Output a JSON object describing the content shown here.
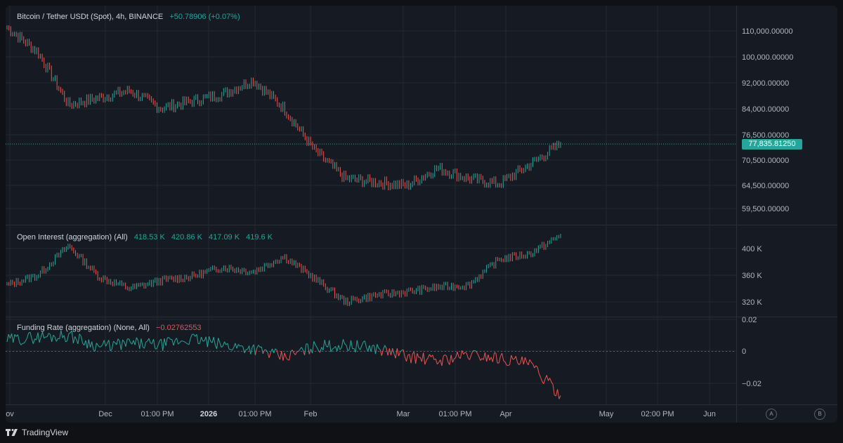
{
  "price_pane": {
    "title": "Bitcoin / Tether USDt (Spot), 4h, BINANCE",
    "change": "+50.78906 (+0.07%)",
    "last_price": "77,835.81250",
    "y_ticks": [
      "110,000.00000",
      "100,000.00000",
      "92,000.00000",
      "84,000.00000",
      "76,500.00000",
      "70,500.00000",
      "64,500.00000",
      "59,500.00000"
    ]
  },
  "oi_pane": {
    "title": "Open Interest (aggregation) (All)",
    "o": "418.53 K",
    "h": "420.86 K",
    "l": "417.09 K",
    "c": "419.6 K",
    "y_ticks": [
      "400 K",
      "360 K",
      "320 K"
    ]
  },
  "funding_pane": {
    "title": "Funding Rate (aggregation) (None, All)",
    "value": "−0.02762553",
    "y_ticks": [
      "0.02",
      "0",
      "−0.02"
    ]
  },
  "x_axis": {
    "labels": [
      "ov",
      "Dec",
      "01:00 PM",
      "2026",
      "01:00 PM",
      "Feb",
      "Mar",
      "01:00 PM",
      "Apr",
      "May",
      "02:00 PM",
      "Jun"
    ]
  },
  "buttons": {
    "a": "A",
    "b": "B"
  },
  "footer": {
    "brand": "TradingView"
  },
  "colors": {
    "up": "#26a69a",
    "down": "#ef5350",
    "background": "#161a22",
    "grid": "#232833"
  },
  "chart_data": [
    {
      "type": "line",
      "title": "Bitcoin / Tether USDt (Spot), 4h, BINANCE",
      "x": [
        "Nov",
        "Nov",
        "Nov",
        "Dec",
        "Dec",
        "Dec",
        "2026",
        "2026",
        "2026",
        "Feb",
        "Feb",
        "Feb",
        "Feb",
        "Mar",
        "Mar",
        "Mar",
        "Apr",
        "Apr",
        "Apr"
      ],
      "series": [
        {
          "values": [
            111000,
            104000,
            89000,
            91000,
            93000,
            88000,
            90000,
            92000,
            96000,
            88000,
            76000,
            68000,
            67000,
            66000,
            71000,
            68000,
            66500,
            72000,
            77835
          ]
        }
      ],
      "ylim": [
        57000,
        116000
      ]
    },
    {
      "type": "line",
      "title": "Open Interest (aggregation) (All)",
      "x": [
        "Nov",
        "Nov",
        "Nov",
        "Dec",
        "Dec",
        "Dec",
        "2026",
        "2026",
        "2026",
        "Feb",
        "Feb",
        "Feb",
        "Feb",
        "Mar",
        "Mar",
        "Mar",
        "Apr",
        "Apr",
        "Apr"
      ],
      "series": [
        {
          "values": [
            345000,
            360000,
            404000,
            357000,
            340000,
            352000,
            358000,
            372000,
            365000,
            388000,
            355000,
            320000,
            330000,
            335000,
            342000,
            345000,
            384000,
            392000,
            419600
          ]
        }
      ],
      "ylim": [
        300000,
        430000
      ]
    },
    {
      "type": "line",
      "title": "Funding Rate (aggregation) (None, All)",
      "x": [
        "Nov",
        "Nov",
        "Nov",
        "Dec",
        "Dec",
        "Dec",
        "2026",
        "2026",
        "2026",
        "Feb",
        "Feb",
        "Feb",
        "Feb",
        "Mar",
        "Mar",
        "Mar",
        "Apr",
        "Apr",
        "Apr"
      ],
      "series": [
        {
          "values": [
            0.007,
            0.009,
            0.01,
            0.003,
            0.005,
            0.004,
            0.008,
            0.004,
            0.002,
            -0.004,
            0.003,
            0.004,
            0.002,
            -0.003,
            -0.006,
            -0.002,
            -0.004,
            -0.008,
            -0.0276
          ]
        }
      ],
      "ylim": [
        -0.027,
        0.02
      ]
    }
  ]
}
